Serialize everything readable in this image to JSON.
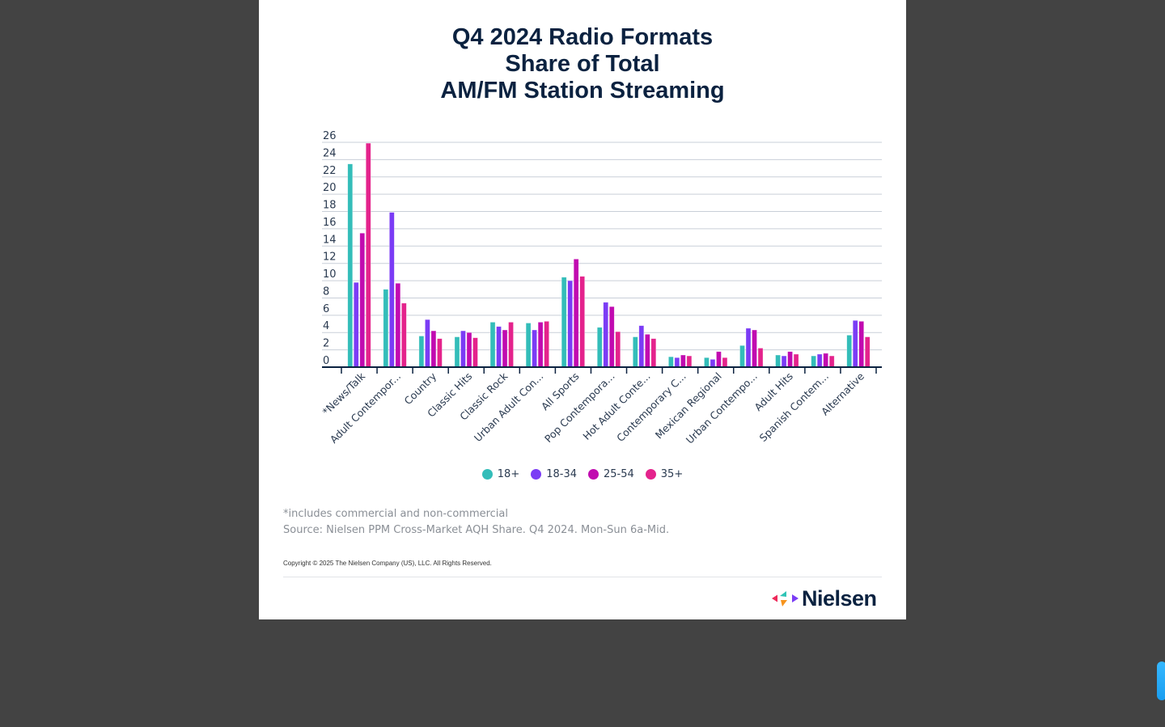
{
  "title_lines": [
    "Q4 2024 Radio Formats",
    "Share of Total",
    "AM/FM Station Streaming"
  ],
  "chart_data": {
    "type": "bar",
    "title": "Q4 2024 Radio Formats Share of Total AM/FM Station Streaming",
    "xlabel": "",
    "ylabel": "",
    "ylim": [
      0,
      26
    ],
    "yticks": [
      0,
      2,
      4,
      6,
      8,
      10,
      12,
      14,
      16,
      18,
      20,
      22,
      24,
      26
    ],
    "grid": true,
    "legend_position": "bottom-center",
    "categories": [
      "*News/Talk",
      "Adult Contempor...",
      "Country",
      "Classic Hits",
      "Classic Rock",
      "Urban Adult Con...",
      "All Sports",
      "Pop Contempora...",
      "Hot Adult Conte...",
      "Contemporary C...",
      "Mexican Regional",
      "Urban Contempo...",
      "Adult Hits",
      "Spanish Contem...",
      "Alternative"
    ],
    "series": [
      {
        "name": "18+",
        "color": "#33bdb9",
        "values": [
          23.5,
          9.0,
          3.6,
          3.5,
          5.2,
          5.1,
          10.4,
          4.6,
          3.5,
          1.2,
          1.1,
          2.5,
          1.4,
          1.3,
          3.7
        ]
      },
      {
        "name": "18-34",
        "color": "#7b3cf5",
        "values": [
          9.8,
          17.9,
          5.5,
          4.2,
          4.7,
          4.3,
          10.0,
          7.5,
          4.8,
          1.1,
          0.9,
          4.5,
          1.3,
          1.5,
          5.4
        ]
      },
      {
        "name": "25-54",
        "color": "#c10bb0",
        "values": [
          15.5,
          9.7,
          4.2,
          4.0,
          4.3,
          5.2,
          12.5,
          7.0,
          3.8,
          1.4,
          1.8,
          4.3,
          1.8,
          1.6,
          5.3
        ]
      },
      {
        "name": "35+",
        "color": "#e4238c",
        "values": [
          25.9,
          7.4,
          3.3,
          3.4,
          5.2,
          5.3,
          10.5,
          4.1,
          3.3,
          1.3,
          1.1,
          2.2,
          1.5,
          1.3,
          3.5
        ]
      }
    ]
  },
  "legend": [
    {
      "label": "18+",
      "color": "#33bdb9"
    },
    {
      "label": "18-34",
      "color": "#7b3cf5"
    },
    {
      "label": "25-54",
      "color": "#c10bb0"
    },
    {
      "label": "35+",
      "color": "#e4238c"
    }
  ],
  "notes": {
    "footnote": "*includes commercial and non-commercial",
    "source": "Source: Nielsen PPM Cross-Market AQH Share. Q4 2024. Mon-Sun 6a-Mid.",
    "copyright": "Copyright © 2025 The Nielsen Company (US), LLC. All Rights Reserved."
  },
  "logo": {
    "text": "Nielsen",
    "colors": {
      "left": "#ee2a5a",
      "top": "#2ec4b6",
      "right": "#7b3cf5",
      "bottom": "#f7941d"
    }
  }
}
